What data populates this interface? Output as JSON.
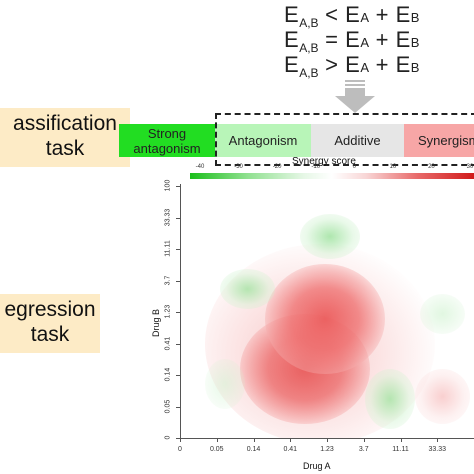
{
  "equations": [
    {
      "lhs": "E",
      "lhs_sub": "A,B",
      "op": "<",
      "t1": "E",
      "t1_sub": "A",
      "plus": "+",
      "t2": "E",
      "t2_sub": "B"
    },
    {
      "lhs": "E",
      "lhs_sub": "A,B",
      "op": "=",
      "t1": "E",
      "t1_sub": "A",
      "plus": "+",
      "t2": "E",
      "t2_sub": "B"
    },
    {
      "lhs": "E",
      "lhs_sub": "A,B",
      "op": ">",
      "t1": "E",
      "t1_sub": "A",
      "plus": "+",
      "t2": "E",
      "t2_sub": "B"
    }
  ],
  "tasks": {
    "classification": {
      "line1": "assification",
      "line2": "task"
    },
    "regression": {
      "line1": "egression",
      "line2": "task"
    }
  },
  "classes": [
    {
      "label": "Strong antagonism",
      "color": "#22dd22"
    },
    {
      "label": "Antagonism",
      "color": "#b8f5b8"
    },
    {
      "label": "Additive",
      "color": "#e6e6e6"
    },
    {
      "label": "Synergism",
      "color": "#f7a6a6"
    }
  ],
  "colors": {
    "arrow": "#bdbdbd",
    "task_bg": "#fdebc6",
    "synergy": "#d11a1a",
    "antagonism": "#1bbf1b"
  },
  "chart_data": {
    "type": "heatmap",
    "title": "Synergy score",
    "xlabel": "Drug A",
    "ylabel": "Drug B",
    "x_ticks": [
      "0",
      "0.05",
      "0.14",
      "0.41",
      "1.23",
      "3.7",
      "11.11",
      "33.33"
    ],
    "y_ticks": [
      "0",
      "0.05",
      "0.14",
      "0.41",
      "1.23",
      "3.7",
      "11.11",
      "33.33",
      "100"
    ],
    "colorbar_ticks": [
      "-40",
      "-30",
      "-20",
      "-10",
      "0",
      "10",
      "20",
      "30"
    ],
    "colorbar_range": [
      -40,
      30
    ],
    "regions": [
      {
        "x": "0.14-1.23",
        "y": "0.14-3.7",
        "score": 30
      },
      {
        "x": "0.41-1.23",
        "y": "1.23-3.7",
        "score": 25
      },
      {
        "x": "3.7",
        "y": "0.05-0.14",
        "score": -10
      },
      {
        "x": "1.23-3.7",
        "y": "33.33",
        "score": -10
      },
      {
        "x": "0.05",
        "y": "3.7",
        "score": -10
      },
      {
        "x": "11.11-33.33",
        "y": "0.05-0.14",
        "score": 10
      }
    ]
  }
}
